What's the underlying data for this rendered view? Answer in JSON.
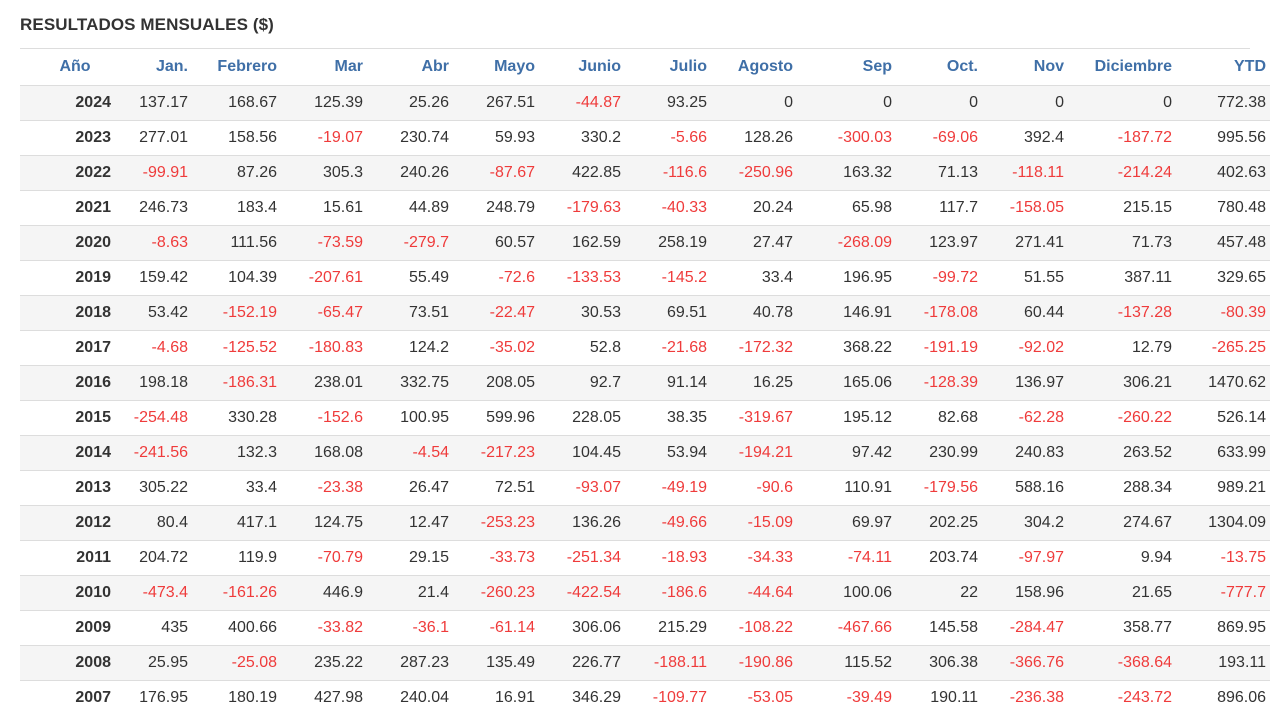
{
  "title": "RESULTADOS MENSUALES ($)",
  "columns": [
    "Año",
    "Jan.",
    "Febrero",
    "Mar",
    "Abr",
    "Mayo",
    "Junio",
    "Julio",
    "Agosto",
    "Sep",
    "Oct.",
    "Nov",
    "Diciembre",
    "YTD"
  ],
  "negative_color": "#ef3b3b",
  "header_color": "#3f6fa7",
  "rows": [
    [
      "2024",
      "137.17",
      "168.67",
      "125.39",
      "25.26",
      "267.51",
      "-44.87",
      "93.25",
      "0",
      "0",
      "0",
      "0",
      "0",
      "772.38"
    ],
    [
      "2023",
      "277.01",
      "158.56",
      "-19.07",
      "230.74",
      "59.93",
      "330.2",
      "-5.66",
      "128.26",
      "-300.03",
      "-69.06",
      "392.4",
      "-187.72",
      "995.56"
    ],
    [
      "2022",
      "-99.91",
      "87.26",
      "305.3",
      "240.26",
      "-87.67",
      "422.85",
      "-116.6",
      "-250.96",
      "163.32",
      "71.13",
      "-118.11",
      "-214.24",
      "402.63"
    ],
    [
      "2021",
      "246.73",
      "183.4",
      "15.61",
      "44.89",
      "248.79",
      "-179.63",
      "-40.33",
      "20.24",
      "65.98",
      "117.7",
      "-158.05",
      "215.15",
      "780.48"
    ],
    [
      "2020",
      "-8.63",
      "111.56",
      "-73.59",
      "-279.7",
      "60.57",
      "162.59",
      "258.19",
      "27.47",
      "-268.09",
      "123.97",
      "271.41",
      "71.73",
      "457.48"
    ],
    [
      "2019",
      "159.42",
      "104.39",
      "-207.61",
      "55.49",
      "-72.6",
      "-133.53",
      "-145.2",
      "33.4",
      "196.95",
      "-99.72",
      "51.55",
      "387.11",
      "329.65"
    ],
    [
      "2018",
      "53.42",
      "-152.19",
      "-65.47",
      "73.51",
      "-22.47",
      "30.53",
      "69.51",
      "40.78",
      "146.91",
      "-178.08",
      "60.44",
      "-137.28",
      "-80.39"
    ],
    [
      "2017",
      "-4.68",
      "-125.52",
      "-180.83",
      "124.2",
      "-35.02",
      "52.8",
      "-21.68",
      "-172.32",
      "368.22",
      "-191.19",
      "-92.02",
      "12.79",
      "-265.25"
    ],
    [
      "2016",
      "198.18",
      "-186.31",
      "238.01",
      "332.75",
      "208.05",
      "92.7",
      "91.14",
      "16.25",
      "165.06",
      "-128.39",
      "136.97",
      "306.21",
      "1470.62"
    ],
    [
      "2015",
      "-254.48",
      "330.28",
      "-152.6",
      "100.95",
      "599.96",
      "228.05",
      "38.35",
      "-319.67",
      "195.12",
      "82.68",
      "-62.28",
      "-260.22",
      "526.14"
    ],
    [
      "2014",
      "-241.56",
      "132.3",
      "168.08",
      "-4.54",
      "-217.23",
      "104.45",
      "53.94",
      "-194.21",
      "97.42",
      "230.99",
      "240.83",
      "263.52",
      "633.99"
    ],
    [
      "2013",
      "305.22",
      "33.4",
      "-23.38",
      "26.47",
      "72.51",
      "-93.07",
      "-49.19",
      "-90.6",
      "110.91",
      "-179.56",
      "588.16",
      "288.34",
      "989.21"
    ],
    [
      "2012",
      "80.4",
      "417.1",
      "124.75",
      "12.47",
      "-253.23",
      "136.26",
      "-49.66",
      "-15.09",
      "69.97",
      "202.25",
      "304.2",
      "274.67",
      "1304.09"
    ],
    [
      "2011",
      "204.72",
      "119.9",
      "-70.79",
      "29.15",
      "-33.73",
      "-251.34",
      "-18.93",
      "-34.33",
      "-74.11",
      "203.74",
      "-97.97",
      "9.94",
      "-13.75"
    ],
    [
      "2010",
      "-473.4",
      "-161.26",
      "446.9",
      "21.4",
      "-260.23",
      "-422.54",
      "-186.6",
      "-44.64",
      "100.06",
      "22",
      "158.96",
      "21.65",
      "-777.7"
    ],
    [
      "2009",
      "435",
      "400.66",
      "-33.82",
      "-36.1",
      "-61.14",
      "306.06",
      "215.29",
      "-108.22",
      "-467.66",
      "145.58",
      "-284.47",
      "358.77",
      "869.95"
    ],
    [
      "2008",
      "25.95",
      "-25.08",
      "235.22",
      "287.23",
      "135.49",
      "226.77",
      "-188.11",
      "-190.86",
      "115.52",
      "306.38",
      "-366.76",
      "-368.64",
      "193.11"
    ],
    [
      "2007",
      "176.95",
      "180.19",
      "427.98",
      "240.04",
      "16.91",
      "346.29",
      "-109.77",
      "-53.05",
      "-39.49",
      "190.11",
      "-236.38",
      "-243.72",
      "896.06"
    ]
  ]
}
